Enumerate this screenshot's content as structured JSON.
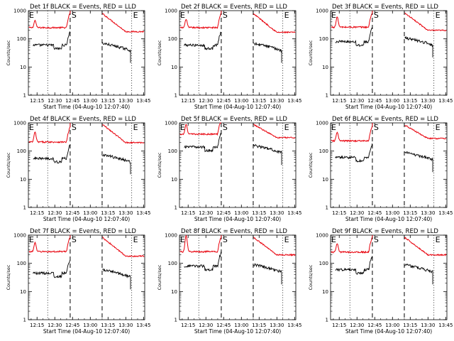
{
  "panels": [
    {
      "title": "Det 1f BLACK = Events, RED = LLD"
    },
    {
      "title": "Det 2f BLACK = Events, RED = LLD"
    },
    {
      "title": "Det 3f BLACK = Events, RED = LLD"
    },
    {
      "title": "Det 4f BLACK = Events, RED = LLD"
    },
    {
      "title": "Det 5f BLACK = Events, RED = LLD"
    },
    {
      "title": "Det 6f BLACK = Events, RED = LLD"
    },
    {
      "title": "Det 7f BLACK = Events, RED = LLD"
    },
    {
      "title": "Det 8f BLACK = Events, RED = LLD"
    },
    {
      "title": "Det 9f BLACK = Events, RED = LLD"
    }
  ],
  "common": {
    "xlabel": "Start Time (04-Aug-10 12:07:40)",
    "ylabel": "Counts/sec",
    "xticks": [
      "12:15",
      "12:30",
      "12:45",
      "13:00",
      "13:15",
      "13:30",
      "13:45"
    ],
    "yticks": [
      "1",
      "10",
      "100",
      "1000"
    ],
    "markers": {
      "E": "E",
      "S": "S"
    }
  },
  "colors": {
    "events": "#000000",
    "lld": "#e8000b",
    "axes": "#000000",
    "background": "#ffffff"
  },
  "chart_data": {
    "type": "line",
    "layout": "3x3 grid of panels",
    "y_scale": "log",
    "ylim": [
      1,
      1000
    ],
    "x_range": [
      "12:07:40",
      "13:46"
    ],
    "grid": false,
    "legend": "none (colors described in titles)",
    "vertical_markers": [
      {
        "time": "12:24",
        "style": "dotted"
      },
      {
        "time": "12:43",
        "style": "dashed",
        "label": "S"
      },
      {
        "time": "13:10",
        "style": "dashed"
      },
      {
        "time": "13:35",
        "style": "dotted",
        "label": "E"
      }
    ],
    "edge_label_left": "E",
    "series": [
      {
        "name": "Events",
        "color": "#000000"
      },
      {
        "name": "LLD",
        "color": "#e8000b"
      }
    ],
    "panels": [
      {
        "events_level": 60,
        "lld_level": 250,
        "lld_peak": 450,
        "events_after": 70,
        "lld_after_start": 800,
        "lld_after_end": 180
      },
      {
        "events_level": 60,
        "lld_level": 250,
        "lld_peak": 500,
        "events_after": 70,
        "lld_after_start": 800,
        "lld_after_end": 170
      },
      {
        "events_level": 80,
        "lld_level": 260,
        "lld_peak": 600,
        "events_after": 110,
        "lld_after_start": 850,
        "lld_after_end": 200
      },
      {
        "events_level": 55,
        "lld_level": 210,
        "lld_peak": 470,
        "events_after": 75,
        "lld_after_start": 900,
        "lld_after_end": 200
      },
      {
        "events_level": 140,
        "lld_level": 400,
        "lld_peak": 900,
        "events_after": 160,
        "lld_after_start": 900,
        "lld_after_end": 300
      },
      {
        "events_level": 60,
        "lld_level": 230,
        "lld_peak": 470,
        "events_after": 90,
        "lld_after_start": 850,
        "lld_after_end": 280
      },
      {
        "events_level": 45,
        "lld_level": 260,
        "lld_peak": 550,
        "events_after": 60,
        "lld_after_start": 850,
        "lld_after_end": 180
      },
      {
        "events_level": 80,
        "lld_level": 260,
        "lld_peak": 950,
        "events_after": 90,
        "lld_after_start": 850,
        "lld_after_end": 200
      },
      {
        "events_level": 60,
        "lld_level": 250,
        "lld_peak": 500,
        "events_after": 90,
        "lld_after_start": 850,
        "lld_after_end": 200
      }
    ]
  }
}
